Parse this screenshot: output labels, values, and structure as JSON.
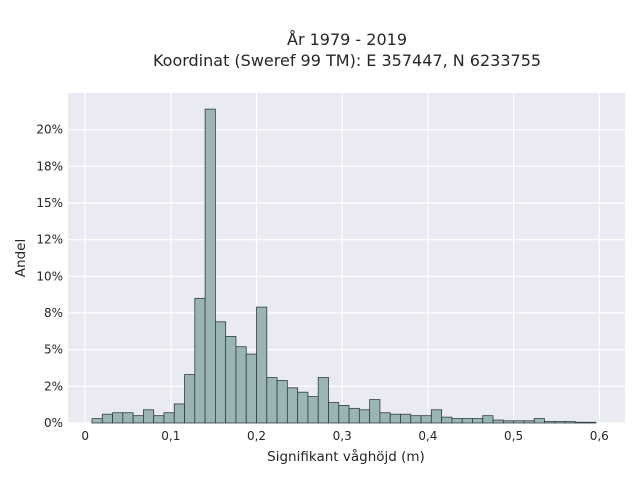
{
  "chart_data": {
    "type": "bar",
    "title_line1": "År 1979 - 2019",
    "title_line2": "Koordinat (Sweref 99 TM): E 357447, N 6233755",
    "xlabel": "Signifikant våghöjd (m)",
    "ylabel": "Andel",
    "xlim": [
      -0.02,
      0.63
    ],
    "ylim": [
      0,
      0.225
    ],
    "grid": true,
    "x_ticks": [
      0,
      0.1,
      0.2,
      0.3,
      0.4,
      0.5,
      0.6
    ],
    "x_tick_labels": [
      "0",
      "0,1",
      "0,2",
      "0,3",
      "0,4",
      "0,5",
      "0,6"
    ],
    "y_ticks": [
      0,
      0.025,
      0.05,
      0.075,
      0.1,
      0.125,
      0.15,
      0.175,
      0.2
    ],
    "y_tick_labels": [
      "0%",
      "2%",
      "5%",
      "8%",
      "10%",
      "12%",
      "15%",
      "18%",
      "20%"
    ],
    "bin_width": 0.012,
    "bin_starts": [
      0.008,
      0.02,
      0.032,
      0.044,
      0.056,
      0.068,
      0.08,
      0.092,
      0.104,
      0.116,
      0.128,
      0.14,
      0.152,
      0.164,
      0.176,
      0.188,
      0.2,
      0.212,
      0.224,
      0.236,
      0.248,
      0.26,
      0.272,
      0.284,
      0.296,
      0.308,
      0.32,
      0.332,
      0.344,
      0.356,
      0.368,
      0.38,
      0.392,
      0.404,
      0.416,
      0.428,
      0.44,
      0.452,
      0.464,
      0.476,
      0.488,
      0.5,
      0.512,
      0.524,
      0.536,
      0.548,
      0.56,
      0.572,
      0.584
    ],
    "values": [
      0.003,
      0.006,
      0.007,
      0.007,
      0.005,
      0.009,
      0.005,
      0.007,
      0.013,
      0.033,
      0.085,
      0.214,
      0.069,
      0.059,
      0.052,
      0.047,
      0.079,
      0.031,
      0.029,
      0.024,
      0.021,
      0.018,
      0.031,
      0.014,
      0.012,
      0.01,
      0.009,
      0.016,
      0.007,
      0.006,
      0.006,
      0.005,
      0.005,
      0.009,
      0.004,
      0.003,
      0.003,
      0.003,
      0.005,
      0.002,
      0.0015,
      0.0015,
      0.0015,
      0.003,
      0.001,
      0.001,
      0.001,
      0.0005,
      0.0005
    ],
    "colors": {
      "bar_fill": "#9bb5b5",
      "bar_edge": "#2f3f3f",
      "plot_bg": "#eaeaf2",
      "grid": "#ffffff"
    }
  }
}
